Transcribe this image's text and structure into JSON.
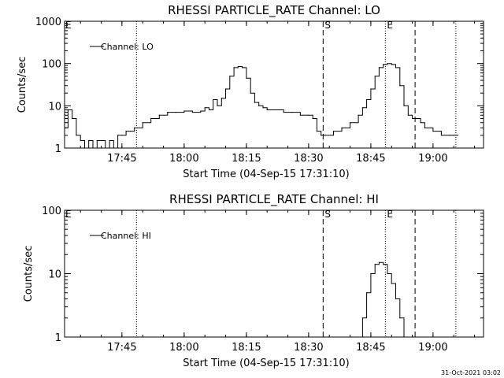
{
  "footer": {
    "timestamp": "31-Oct-2021 03:02"
  },
  "chart_data": [
    {
      "type": "line",
      "title": "RHESSI PARTICLE_RATE Channel: LO",
      "xlabel": "Start Time (04-Sep-15 17:31:10)",
      "ylabel": "Counts/sec",
      "y_scale": "log",
      "ylim": [
        1,
        1000
      ],
      "xlim": [
        "17:31:10",
        "19:12:10"
      ],
      "x_ticks": [
        "17:45",
        "18:00",
        "18:15",
        "18:30",
        "18:45",
        "19:00"
      ],
      "y_ticks": [
        "1",
        "10",
        "100",
        "1000"
      ],
      "legend": {
        "position": "top-left"
      },
      "series": [
        {
          "name": "Channel: LO",
          "x": [
            "17:31:10",
            "17:32:00",
            "17:33:00",
            "17:34:00",
            "17:35:00",
            "17:36:00",
            "17:37:00",
            "17:38:00",
            "17:39:00",
            "17:40:00",
            "17:41:00",
            "17:42:00",
            "17:43:00",
            "17:44:00",
            "17:45:00",
            "17:46:00",
            "17:47:00",
            "17:48:00",
            "17:50:00",
            "17:52:00",
            "17:54:00",
            "17:56:00",
            "17:58:00",
            "18:00:00",
            "18:02:00",
            "18:04:00",
            "18:05:00",
            "18:06:00",
            "18:07:00",
            "18:08:00",
            "18:09:00",
            "18:10:00",
            "18:11:00",
            "18:12:00",
            "18:13:00",
            "18:14:00",
            "18:15:00",
            "18:16:00",
            "18:17:00",
            "18:18:00",
            "18:19:00",
            "18:20:00",
            "18:22:00",
            "18:24:00",
            "18:26:00",
            "18:28:00",
            "18:30:00",
            "18:31:00",
            "18:32:00",
            "18:33:00",
            "18:34:00",
            "18:36:00",
            "18:38:00",
            "18:40:00",
            "18:42:00",
            "18:43:00",
            "18:44:00",
            "18:45:00",
            "18:46:00",
            "18:47:00",
            "18:48:00",
            "18:49:00",
            "18:50:00",
            "18:51:00",
            "18:52:00",
            "18:53:00",
            "18:54:00",
            "18:55:00",
            "18:56:00",
            "18:57:00",
            "18:58:00",
            "19:00:00",
            "19:02:00",
            "19:04:00",
            "19:05:00",
            "19:06:00"
          ],
          "values": [
            3,
            8,
            5,
            2,
            1.5,
            1,
            1.5,
            1,
            1.5,
            1.5,
            1,
            1.5,
            1,
            2,
            2,
            2.5,
            2.5,
            3,
            4,
            5,
            6,
            7,
            7,
            7.5,
            7,
            7.5,
            9,
            8,
            14,
            10,
            15,
            25,
            50,
            80,
            85,
            80,
            45,
            20,
            12,
            10,
            9,
            8,
            8,
            7,
            7,
            6,
            6,
            5,
            2.5,
            2,
            2,
            2.5,
            3,
            4,
            6,
            9,
            14,
            25,
            50,
            80,
            95,
            100,
            95,
            80,
            30,
            10,
            6,
            5,
            5,
            4,
            3,
            2.5,
            2,
            2,
            2,
            2
          ]
        }
      ],
      "markers": [
        {
          "label": "S",
          "time": "18:33:30",
          "style": "dashed"
        },
        {
          "label": "E",
          "time": "18:48:30",
          "style": "dotted"
        },
        {
          "label": "",
          "time": "17:48:30",
          "style": "dotted"
        },
        {
          "label": "",
          "time": "18:55:40",
          "style": "dashed"
        },
        {
          "label": "",
          "time": "19:05:30",
          "style": "dotted"
        }
      ]
    },
    {
      "type": "line",
      "title": "RHESSI PARTICLE_RATE Channel: HI",
      "xlabel": "Start Time (04-Sep-15 17:31:10)",
      "ylabel": "Counts/sec",
      "y_scale": "log",
      "ylim": [
        1,
        100
      ],
      "xlim": [
        "17:31:10",
        "19:12:10"
      ],
      "x_ticks": [
        "17:45",
        "18:00",
        "18:15",
        "18:30",
        "18:45",
        "19:00"
      ],
      "y_ticks": [
        "1",
        "10",
        "100"
      ],
      "legend": {
        "position": "top-left"
      },
      "series": [
        {
          "name": "Channel: HI",
          "x": [
            "18:42:00",
            "18:43:00",
            "18:44:00",
            "18:45:00",
            "18:46:00",
            "18:47:00",
            "18:48:00",
            "18:49:00",
            "18:50:00",
            "18:51:00",
            "18:52:00",
            "18:53:00"
          ],
          "values": [
            1,
            2,
            5,
            10,
            14,
            15,
            14,
            10,
            7,
            4,
            2,
            1
          ]
        }
      ],
      "markers": [
        {
          "label": "S",
          "time": "18:33:30",
          "style": "dashed"
        },
        {
          "label": "E",
          "time": "18:48:30",
          "style": "dotted"
        },
        {
          "label": "",
          "time": "17:48:30",
          "style": "dotted"
        },
        {
          "label": "",
          "time": "18:55:40",
          "style": "dashed"
        },
        {
          "label": "",
          "time": "19:05:30",
          "style": "dotted"
        }
      ]
    }
  ]
}
